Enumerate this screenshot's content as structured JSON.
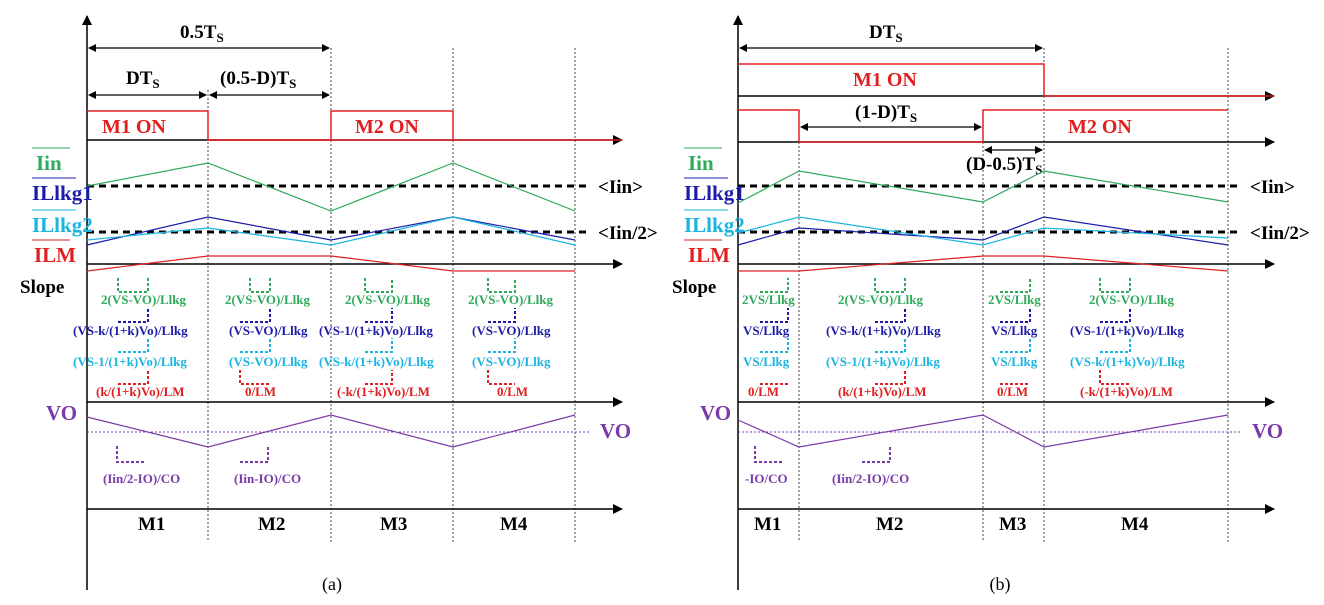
{
  "colors": {
    "iin": "#2eaa5a",
    "illkg1": "#1c1caa",
    "illkg2": "#1ab4e0",
    "ilm": "#e02020",
    "vo": "#7a3aa8",
    "text": "#000000"
  },
  "panels": [
    {
      "caption": "(a)",
      "dims": {
        "top": "0.5T",
        "top_sub": "S",
        "d": "DT",
        "d_sub": "S",
        "mid": "(0.5-D)T",
        "mid_sub": "S"
      },
      "on1": "M1 ON",
      "on2": "M2 ON",
      "avg_in": "<Iin>",
      "avg_in_half": "<Iin/2>",
      "vo_right": "VO",
      "slopes": {
        "iin": [
          "2(VS-VO)/Llkg",
          "2(VS-VO)/Llkg",
          "2(VS-VO)/Llkg",
          "2(VS-VO)/Llkg"
        ],
        "l1": [
          "(VS-k/(1+k)Vo)/Llkg",
          "(VS-VO)/Llkg",
          "(VS-1/(1+k)Vo)/Llkg",
          "(VS-VO)/Llkg"
        ],
        "l2": [
          "(VS-1/(1+k)Vo)/Llkg",
          "(VS-VO)/Llkg",
          "(VS-k/(1+k)Vo)/Llkg",
          "(VS-VO)/Llkg"
        ],
        "lm": [
          "(k/(1+k)Vo)/LM",
          "0/LM",
          "(-k/(1+k)Vo)/LM",
          "0/LM"
        ]
      },
      "cap_slopes": [
        "(Iin/2-IO)/CO",
        "(Iin-IO)/CO"
      ],
      "modes": [
        "M1",
        "M2",
        "M3",
        "M4"
      ]
    },
    {
      "caption": "(b)",
      "dims": {
        "top": "DT",
        "top_sub": "S",
        "mid": "(1-D)T",
        "mid_sub": "S",
        "small": "(D-0.5)T",
        "small_sub": "S"
      },
      "on1": "M1 ON",
      "on2": "M2 ON",
      "avg_in": "<Iin>",
      "avg_in_half": "<Iin/2>",
      "vo_right": "VO",
      "slopes": {
        "iin": [
          "2VS/Llkg",
          "2(VS-VO)/Llkg",
          "2VS/Llkg",
          "2(VS-VO)/Llkg"
        ],
        "l1": [
          "VS/Llkg",
          "(VS-k/(1+k)Vo)/Llkg",
          "VS/Llkg",
          "(VS-1/(1+k)Vo)/Llkg"
        ],
        "l2": [
          "VS/Llkg",
          "(VS-1/(1+k)Vo)/Llkg",
          "VS/Llkg",
          "(VS-k/(1+k)Vo)/Llkg"
        ],
        "lm": [
          "0/LM",
          "(k/(1+k)Vo)/LM",
          "0/LM",
          "(-k/(1+k)Vo)/LM"
        ]
      },
      "cap_slopes": [
        "-IO/CO",
        "(Iin/2-IO)/CO"
      ],
      "modes": [
        "M1",
        "M2",
        "M3",
        "M4"
      ]
    }
  ],
  "left_labels": {
    "iin": "Iin",
    "illkg1": "ILlkg1",
    "illkg2": "ILlkg2",
    "ilm": "ILM",
    "slope": "Slope",
    "vo": "VO"
  }
}
